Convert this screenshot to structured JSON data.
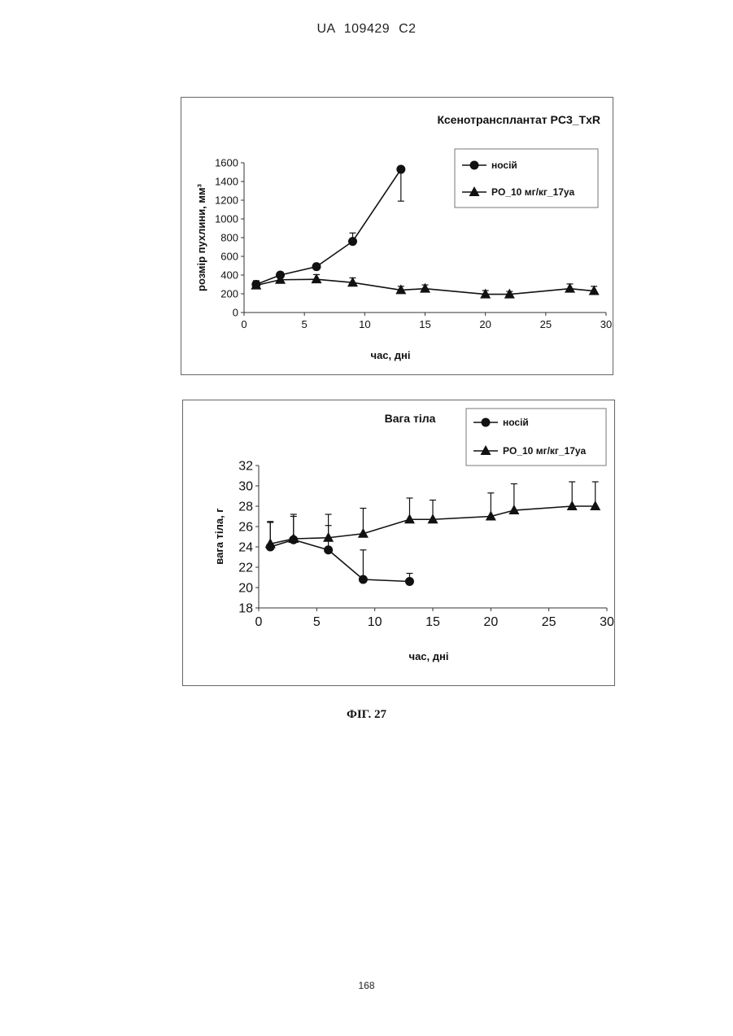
{
  "document": {
    "header": "UA 109429 C2",
    "figure_caption": "ФІГ. 27",
    "page_number": "168"
  },
  "chart_data": [
    {
      "type": "line",
      "title": "Ксенотрансплантат PC3_TxR",
      "xlabel": "час, дні",
      "ylabel": "розмір пухлини, мм³",
      "xlim": [
        0,
        30
      ],
      "ylim": [
        0,
        1600
      ],
      "xticks": [
        0,
        5,
        10,
        15,
        20,
        25,
        30
      ],
      "yticks": [
        0,
        200,
        400,
        600,
        800,
        1000,
        1200,
        1400,
        1600
      ],
      "grid": false,
      "legend_position": "top-right",
      "series": [
        {
          "name": "носій",
          "marker": "circle",
          "x": [
            1,
            3,
            6,
            9,
            13
          ],
          "y": [
            300,
            400,
            490,
            760,
            1530
          ],
          "error": [
            40,
            30,
            30,
            90,
            340
          ]
        },
        {
          "name": "PO_10 мг/кг_17уа",
          "marker": "triangle",
          "x": [
            1,
            3,
            6,
            9,
            13,
            15,
            20,
            22,
            27,
            29
          ],
          "y": [
            290,
            350,
            355,
            320,
            240,
            255,
            195,
            195,
            255,
            230
          ],
          "error": [
            40,
            30,
            50,
            50,
            40,
            40,
            40,
            30,
            50,
            50
          ]
        }
      ]
    },
    {
      "type": "line",
      "title": "Вага тіла",
      "xlabel": "час, дні",
      "ylabel": "вага тіла, г",
      "xlim": [
        0,
        30
      ],
      "ylim": [
        18,
        32
      ],
      "xticks": [
        0,
        5,
        10,
        15,
        20,
        25,
        30
      ],
      "yticks": [
        18,
        20,
        22,
        24,
        26,
        28,
        30,
        32
      ],
      "grid": false,
      "legend_position": "top-right",
      "series": [
        {
          "name": "носій",
          "marker": "circle",
          "x": [
            1,
            3,
            6,
            9,
            13
          ],
          "y": [
            24.0,
            24.7,
            23.7,
            20.8,
            20.6
          ],
          "error": [
            2.5,
            2.3,
            2.4,
            2.9,
            0.8
          ]
        },
        {
          "name": "PO_10 мг/кг_17уа",
          "marker": "triangle",
          "x": [
            1,
            3,
            6,
            9,
            13,
            15,
            20,
            22,
            27,
            29
          ],
          "y": [
            24.3,
            24.8,
            24.9,
            25.3,
            26.7,
            26.7,
            27.0,
            27.6,
            28.0,
            28.0
          ],
          "error": [
            2.1,
            2.4,
            2.3,
            2.5,
            2.1,
            1.9,
            2.3,
            2.6,
            2.4,
            2.4
          ]
        }
      ]
    }
  ]
}
